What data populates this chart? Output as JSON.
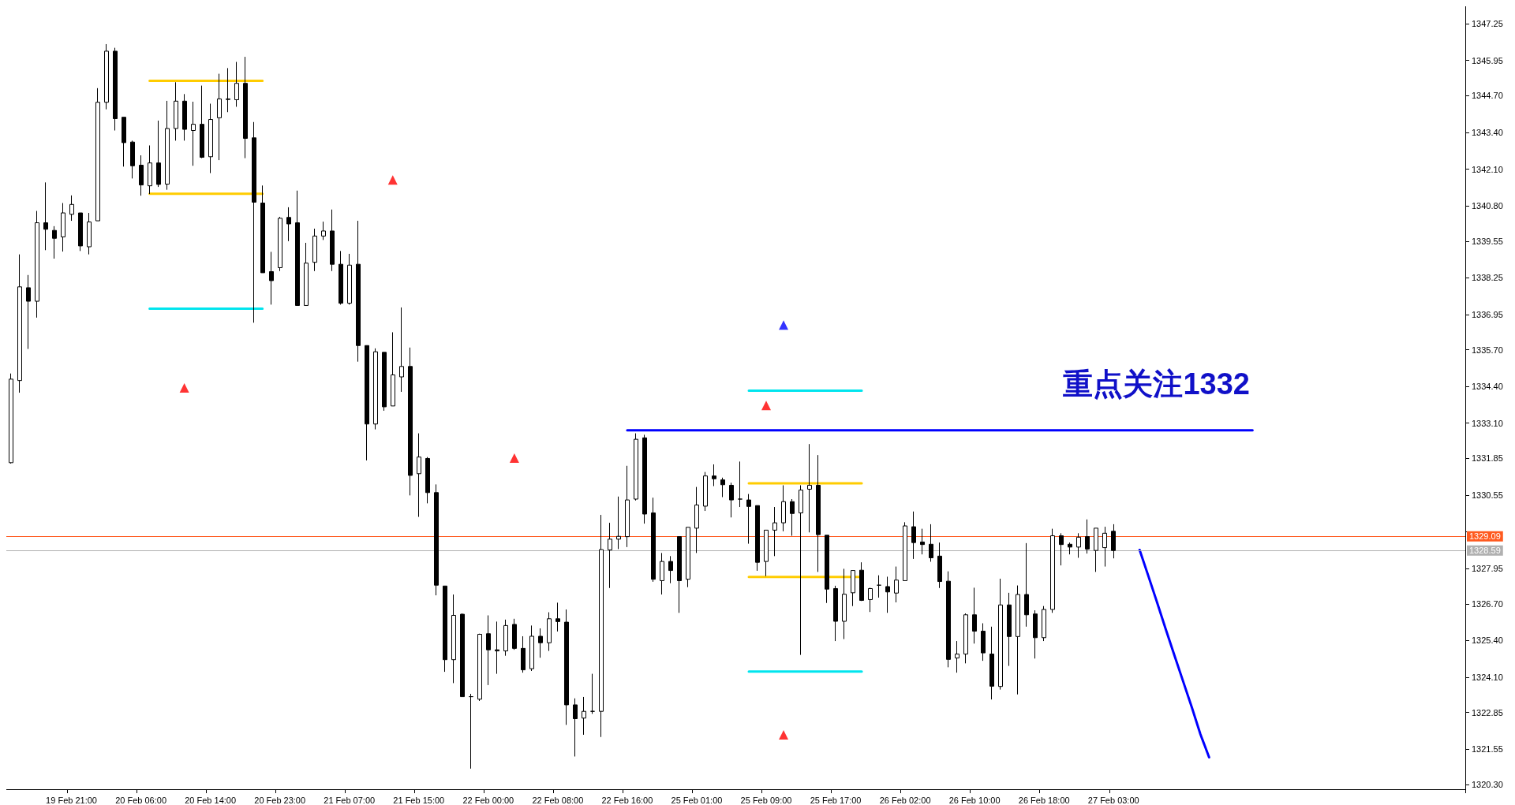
{
  "chart_data": {
    "type": "candlestick",
    "categories": [
      null,
      null,
      null,
      null,
      null,
      null,
      null,
      "19 Feb 21:00",
      null,
      null,
      null,
      null,
      null,
      null,
      null,
      "20 Feb 06:00",
      null,
      null,
      null,
      null,
      null,
      null,
      null,
      "20 Feb 14:00",
      null,
      null,
      null,
      null,
      null,
      null,
      null,
      "20 Feb 23:00",
      null,
      null,
      null,
      null,
      null,
      null,
      null,
      "21 Feb 07:00",
      null,
      null,
      null,
      null,
      null,
      null,
      null,
      "21 Feb 15:00",
      null,
      null,
      null,
      null,
      null,
      null,
      null,
      "22 Feb 00:00",
      null,
      null,
      null,
      null,
      null,
      null,
      null,
      "22 Feb 08:00",
      null,
      null,
      null,
      null,
      null,
      null,
      null,
      "22 Feb 16:00",
      null,
      null,
      null,
      null,
      null,
      null,
      null,
      "25 Feb 01:00",
      null,
      null,
      null,
      null,
      null,
      null,
      null,
      "25 Feb 09:00",
      null,
      null,
      null,
      null,
      null,
      null,
      null,
      "25 Feb 17:00",
      null,
      null,
      null,
      null,
      null,
      null,
      null,
      "26 Feb 02:00",
      null,
      null,
      null,
      null,
      null,
      null,
      null,
      "26 Feb 10:00",
      null,
      null,
      null,
      null,
      null,
      null,
      null,
      "26 Feb 18:00",
      null,
      null,
      null,
      null,
      null,
      null,
      null,
      "27 Feb 03:00",
      null,
      null,
      null,
      null,
      null,
      null,
      null,
      null,
      null,
      null,
      null,
      null,
      null,
      null,
      null,
      null,
      null,
      null,
      null,
      null,
      null,
      null,
      null,
      null,
      null,
      null,
      null,
      null,
      null,
      null,
      null,
      null,
      null,
      null,
      null,
      null,
      null,
      null,
      null,
      null
    ],
    "ohlc": [
      [
        1331.7,
        1334.86,
        1331.67,
        1334.66
      ],
      [
        1334.61,
        1339.08,
        1334.18,
        1337.93
      ],
      [
        1337.9,
        1338.35,
        1335.73,
        1337.42
      ],
      [
        1337.42,
        1340.62,
        1336.84,
        1340.2
      ],
      [
        1340.2,
        1341.63,
        1339.23,
        1339.97
      ],
      [
        1339.93,
        1340.08,
        1338.93,
        1339.65
      ],
      [
        1339.7,
        1340.9,
        1339.18,
        1340.55
      ],
      [
        1340.5,
        1341.17,
        1340.27,
        1340.85
      ],
      [
        1340.55,
        1340.55,
        1339.2,
        1339.38
      ],
      [
        1339.35,
        1340.55,
        1339.08,
        1340.23
      ],
      [
        1340.27,
        1344.97,
        1340.27,
        1344.47
      ],
      [
        1344.47,
        1346.53,
        1344.22,
        1346.28
      ],
      [
        1346.28,
        1346.4,
        1343.47,
        1343.89
      ],
      [
        1343.94,
        1343.94,
        1342.19,
        1343.04
      ],
      [
        1343.06,
        1343.11,
        1341.77,
        1342.22
      ],
      [
        1342.24,
        1342.59,
        1341.16,
        1341.54
      ],
      [
        1341.51,
        1342.94,
        1341.22,
        1342.32
      ],
      [
        1342.32,
        1343.82,
        1341.47,
        1341.56
      ],
      [
        1341.57,
        1344.52,
        1341.37,
        1343.54
      ],
      [
        1343.54,
        1345.18,
        1343.11,
        1344.51
      ],
      [
        1344.51,
        1344.76,
        1343.11,
        1343.51
      ],
      [
        1343.47,
        1344.49,
        1342.22,
        1343.69
      ],
      [
        1343.69,
        1345.06,
        1342.49,
        1342.52
      ],
      [
        1342.54,
        1344.42,
        1341.96,
        1343.86
      ],
      [
        1343.92,
        1345.48,
        1342.42,
        1344.59
      ],
      [
        1344.59,
        1345.68,
        1344.12,
        1344.57
      ],
      [
        1344.56,
        1345.9,
        1344.31,
        1345.14
      ],
      [
        1345.14,
        1346.08,
        1342.49,
        1343.19
      ],
      [
        1343.21,
        1343.77,
        1336.66,
        1340.93
      ],
      [
        1340.9,
        1341.52,
        1338.43,
        1338.43
      ],
      [
        1338.47,
        1339.17,
        1337.3,
        1338.15
      ],
      [
        1338.61,
        1340.41,
        1338.49,
        1340.36
      ],
      [
        1340.39,
        1340.75,
        1339.55,
        1340.16
      ],
      [
        1340.2,
        1341.34,
        1337.27,
        1337.27
      ],
      [
        1337.27,
        1339.49,
        1337.27,
        1338.77
      ],
      [
        1338.8,
        1339.99,
        1338.49,
        1339.73
      ],
      [
        1339.73,
        1340.24,
        1339.59,
        1339.91
      ],
      [
        1339.91,
        1340.67,
        1338.49,
        1338.73
      ],
      [
        1338.73,
        1339.2,
        1337.3,
        1337.35
      ],
      [
        1337.35,
        1339.1,
        1337.3,
        1338.7
      ],
      [
        1338.73,
        1340.27,
        1335.28,
        1335.85
      ],
      [
        1335.85,
        1335.85,
        1331.78,
        1333.07
      ],
      [
        1333.07,
        1335.75,
        1332.88,
        1335.63
      ],
      [
        1335.61,
        1335.61,
        1333.54,
        1333.68
      ],
      [
        1333.71,
        1336.32,
        1333.71,
        1334.81
      ],
      [
        1334.74,
        1337.2,
        1334.21,
        1335.11
      ],
      [
        1335.11,
        1335.78,
        1330.54,
        1331.25
      ],
      [
        1331.31,
        1332.74,
        1329.78,
        1331.9
      ],
      [
        1331.85,
        1331.9,
        1330.26,
        1330.64
      ],
      [
        1330.64,
        1330.93,
        1327.0,
        1327.36
      ],
      [
        1327.33,
        1327.33,
        1324.29,
        1324.72
      ],
      [
        1324.72,
        1327.03,
        1323.89,
        1326.29
      ],
      [
        1326.33,
        1326.36,
        1323.41,
        1323.41
      ],
      [
        1323.41,
        1323.51,
        1320.86,
        1323.41
      ],
      [
        1323.32,
        1325.64,
        1323.26,
        1325.62
      ],
      [
        1325.64,
        1326.29,
        1323.82,
        1325.07
      ],
      [
        1325.07,
        1326.07,
        1324.22,
        1325.03
      ],
      [
        1325.03,
        1326.14,
        1324.86,
        1325.93
      ],
      [
        1325.97,
        1326.17,
        1325.07,
        1325.12
      ],
      [
        1325.12,
        1325.55,
        1324.26,
        1324.36
      ],
      [
        1324.4,
        1325.93,
        1324.32,
        1325.55
      ],
      [
        1325.55,
        1325.83,
        1324.79,
        1325.32
      ],
      [
        1325.32,
        1326.4,
        1325.03,
        1326.17
      ],
      [
        1326.17,
        1326.74,
        1325.72,
        1326.07
      ],
      [
        1326.05,
        1326.5,
        1322.41,
        1323.12
      ],
      [
        1323.12,
        1323.35,
        1321.29,
        1322.63
      ],
      [
        1322.65,
        1323.4,
        1322.06,
        1322.89
      ],
      [
        1322.89,
        1324.22,
        1322.8,
        1322.89
      ],
      [
        1322.89,
        1329.85,
        1321.98,
        1328.62
      ],
      [
        1328.61,
        1329.57,
        1327.26,
        1328.99
      ],
      [
        1328.99,
        1330.5,
        1328.64,
        1329.09
      ],
      [
        1329.08,
        1331.59,
        1328.71,
        1330.38
      ],
      [
        1330.41,
        1332.74,
        1330.36,
        1332.53
      ],
      [
        1332.58,
        1332.69,
        1329.54,
        1329.88
      ],
      [
        1329.92,
        1330.46,
        1327.48,
        1327.57
      ],
      [
        1327.52,
        1328.5,
        1327.03,
        1328.2
      ],
      [
        1328.2,
        1328.39,
        1327.43,
        1327.88
      ],
      [
        1329.08,
        1329.08,
        1326.38,
        1327.52
      ],
      [
        1327.57,
        1329.41,
        1327.29,
        1329.41
      ],
      [
        1329.38,
        1330.84,
        1328.5,
        1330.2
      ],
      [
        1330.16,
        1331.37,
        1329.99,
        1331.23
      ],
      [
        1331.23,
        1331.64,
        1330.87,
        1331.13
      ],
      [
        1331.09,
        1331.17,
        1330.48,
        1330.92
      ],
      [
        1330.9,
        1330.99,
        1329.76,
        1330.38
      ],
      [
        1330.41,
        1331.74,
        1330.13,
        1330.41
      ],
      [
        1330.38,
        1330.59,
        1328.83,
        1330.15
      ],
      [
        1330.18,
        1330.18,
        1327.87,
        1328.17
      ],
      [
        1328.2,
        1329.31,
        1327.68,
        1329.31
      ],
      [
        1329.31,
        1330.13,
        1328.39,
        1329.57
      ],
      [
        1329.57,
        1330.9,
        1329.27,
        1330.32
      ],
      [
        1330.32,
        1330.41,
        1329.11,
        1329.9
      ],
      [
        1329.92,
        1330.9,
        1324.89,
        1330.73
      ],
      [
        1330.76,
        1332.36,
        1329.23,
        1330.9
      ],
      [
        1330.9,
        1331.97,
        1327.83,
        1329.15
      ],
      [
        1329.13,
        1329.13,
        1326.73,
        1327.22
      ],
      [
        1327.24,
        1327.34,
        1325.38,
        1326.08
      ],
      [
        1326.08,
        1327.94,
        1325.45,
        1327.04
      ],
      [
        1327.09,
        1327.88,
        1326.62,
        1327.88
      ],
      [
        1327.89,
        1328.17,
        1326.8,
        1326.82
      ],
      [
        1326.85,
        1327.27,
        1326.41,
        1327.24
      ],
      [
        1327.36,
        1327.71,
        1326.92,
        1327.36
      ],
      [
        1327.31,
        1327.66,
        1326.38,
        1327.12
      ],
      [
        1327.08,
        1328.02,
        1326.75,
        1327.54
      ],
      [
        1327.52,
        1329.59,
        1327.52,
        1329.46
      ],
      [
        1329.43,
        1329.97,
        1328.29,
        1328.87
      ],
      [
        1328.89,
        1329.36,
        1328.45,
        1328.8
      ],
      [
        1328.81,
        1329.52,
        1328.19,
        1328.33
      ],
      [
        1328.39,
        1328.87,
        1327.26,
        1327.49
      ],
      [
        1327.5,
        1327.85,
        1324.45,
        1324.73
      ],
      [
        1324.78,
        1325.38,
        1324.26,
        1324.92
      ],
      [
        1324.92,
        1326.36,
        1324.59,
        1326.31
      ],
      [
        1326.31,
        1327.27,
        1325.29,
        1325.73
      ],
      [
        1325.73,
        1326.01,
        1324.68,
        1324.96
      ],
      [
        1324.92,
        1325.89,
        1323.31,
        1323.78
      ],
      [
        1323.77,
        1327.59,
        1323.66,
        1326.66
      ],
      [
        1326.66,
        1327.09,
        1324.5,
        1325.54
      ],
      [
        1325.54,
        1327.35,
        1323.49,
        1327.03
      ],
      [
        1327.03,
        1328.85,
        1325.89,
        1326.31
      ],
      [
        1326.34,
        1326.47,
        1324.76,
        1325.5
      ],
      [
        1325.5,
        1326.62,
        1325.38,
        1326.5
      ],
      [
        1326.5,
        1329.36,
        1326.38,
        1329.11
      ],
      [
        1329.11,
        1329.2,
        1328.06,
        1328.8
      ],
      [
        1328.81,
        1328.87,
        1328.45,
        1328.71
      ],
      [
        1328.71,
        1329.2,
        1328.33,
        1329.06
      ],
      [
        1329.08,
        1329.69,
        1328.48,
        1328.64
      ],
      [
        1328.59,
        1329.38,
        1327.83,
        1329.38
      ],
      [
        1328.69,
        1329.43,
        1328.02,
        1329.2
      ],
      [
        1329.27,
        1329.52,
        1328.31,
        1328.59
      ],
      null,
      null,
      null,
      null,
      null,
      null,
      null,
      null,
      null,
      null,
      null,
      null,
      null,
      null,
      null,
      null,
      null,
      null,
      null,
      null,
      null,
      null,
      null,
      null,
      null,
      null,
      null,
      null,
      null,
      null,
      null,
      null,
      null,
      null,
      null,
      null,
      null,
      null,
      null,
      null
    ],
    "series": [
      {
        "type": "line",
        "color": "#ffcc00",
        "marker": "none",
        "values": [
          null,
          null,
          null,
          null,
          null,
          null,
          null,
          null,
          null,
          null,
          null,
          null,
          null,
          null,
          null,
          null,
          1345.23,
          1345.23,
          1345.23,
          1345.23,
          1345.23,
          1345.23,
          1345.23,
          1345.23,
          1345.23,
          1345.23,
          1345.23,
          1345.23,
          1345.23,
          1345.23,
          null,
          null,
          null,
          null,
          null,
          null,
          null,
          null,
          null,
          null,
          null,
          null,
          null,
          null,
          null,
          null,
          null,
          null,
          null,
          null,
          null,
          null,
          null,
          null,
          null,
          null,
          null,
          null,
          null,
          null,
          null,
          null,
          null,
          null,
          null,
          null,
          null,
          null,
          null,
          null,
          null,
          null,
          null,
          null,
          null,
          null,
          null,
          null,
          null,
          null,
          null,
          null,
          null,
          null,
          null,
          1330.97,
          1330.97,
          1330.97,
          1330.97,
          1330.97,
          1330.97,
          1330.97,
          1330.97,
          1330.97,
          1330.97,
          1330.97,
          1330.97,
          1330.97,
          1330.97,
          null,
          null,
          null,
          null,
          null,
          null,
          null,
          null,
          null,
          null,
          null,
          null,
          null,
          null,
          null,
          null,
          null,
          null,
          null,
          null,
          null,
          null,
          null,
          null,
          null,
          null,
          null,
          null,
          null,
          null,
          null,
          null,
          null,
          null,
          null,
          null,
          null,
          null,
          null,
          null,
          null,
          null,
          null,
          null,
          null,
          null,
          null,
          null,
          null,
          null,
          null,
          null,
          null,
          null,
          null,
          null,
          null,
          null,
          null,
          null,
          null,
          null,
          null,
          null,
          null,
          null,
          null,
          null,
          null
        ]
      },
      {
        "type": "line",
        "color": "#ffcc00",
        "marker": "none",
        "values": [
          null,
          null,
          null,
          null,
          null,
          null,
          null,
          null,
          null,
          null,
          null,
          null,
          null,
          null,
          null,
          null,
          1341.23,
          1341.23,
          1341.23,
          1341.23,
          1341.23,
          1341.23,
          1341.23,
          1341.23,
          1341.23,
          1341.23,
          1341.23,
          1341.23,
          1341.23,
          1341.23,
          null,
          null,
          null,
          null,
          null,
          null,
          null,
          null,
          null,
          null,
          null,
          null,
          null,
          null,
          null,
          null,
          null,
          null,
          null,
          null,
          null,
          null,
          null,
          null,
          null,
          null,
          null,
          null,
          null,
          null,
          null,
          null,
          null,
          null,
          null,
          null,
          null,
          null,
          null,
          null,
          null,
          null,
          null,
          null,
          null,
          null,
          null,
          null,
          null,
          null,
          null,
          null,
          null,
          null,
          null,
          1327.65,
          1327.65,
          1327.65,
          1327.65,
          1327.65,
          1327.65,
          1327.65,
          1327.65,
          1327.65,
          1327.65,
          1327.65,
          1327.65,
          1327.65,
          1327.65,
          null,
          null,
          null,
          null,
          null,
          null,
          null,
          null,
          null,
          null,
          null,
          null,
          null,
          null,
          null,
          null,
          null,
          null,
          null,
          null,
          null,
          null,
          null,
          null,
          null,
          null,
          null,
          null,
          null,
          null,
          null,
          null,
          null,
          null,
          null,
          null,
          null,
          null,
          null,
          null,
          null,
          null,
          null,
          null,
          null,
          null,
          null,
          null,
          null,
          null,
          null,
          null,
          null,
          null,
          null,
          null,
          null,
          null,
          null,
          null,
          null,
          null,
          null,
          null,
          null,
          null,
          null,
          null,
          null
        ]
      },
      {
        "type": "line",
        "color": "#00e5ee",
        "marker": "none",
        "values": [
          null,
          null,
          null,
          null,
          null,
          null,
          null,
          null,
          null,
          null,
          null,
          null,
          null,
          null,
          null,
          null,
          1337.16,
          1337.16,
          1337.16,
          1337.16,
          1337.16,
          1337.16,
          1337.16,
          1337.16,
          1337.16,
          1337.16,
          1337.16,
          1337.16,
          1337.16,
          1337.16,
          null,
          null,
          null,
          null,
          null,
          null,
          null,
          null,
          null,
          null,
          null,
          null,
          null,
          null,
          null,
          null,
          null,
          null,
          null,
          null,
          null,
          null,
          null,
          null,
          null,
          null,
          null,
          null,
          null,
          null,
          null,
          null,
          null,
          null,
          null,
          null,
          null,
          null,
          null,
          null,
          null,
          null,
          null,
          null,
          null,
          null,
          null,
          null,
          null,
          null,
          null,
          null,
          null,
          null,
          null,
          1334.25,
          1334.25,
          1334.25,
          1334.25,
          1334.25,
          1334.25,
          1334.25,
          1334.25,
          1334.25,
          1334.25,
          1334.25,
          1334.25,
          1334.25,
          1334.25,
          null,
          null,
          null,
          null,
          null,
          null,
          null,
          null,
          null,
          null,
          null,
          null,
          null,
          null,
          null,
          null,
          null,
          null,
          null,
          null,
          null,
          null,
          null,
          null,
          null,
          null,
          null,
          null,
          null,
          null,
          null,
          null,
          null,
          null,
          null,
          null,
          null,
          null,
          null,
          null,
          null,
          null,
          null,
          null,
          null,
          null,
          null,
          null,
          null,
          null,
          null,
          null,
          null,
          null,
          null,
          null,
          null,
          null,
          null,
          null,
          null,
          null,
          null,
          null,
          null,
          null,
          null,
          null,
          null
        ]
      },
      {
        "type": "line",
        "color": "#00e5ee",
        "marker": "none",
        "values": [
          null,
          null,
          null,
          null,
          null,
          null,
          null,
          null,
          null,
          null,
          null,
          null,
          null,
          null,
          null,
          null,
          null,
          null,
          null,
          null,
          null,
          null,
          null,
          null,
          null,
          null,
          null,
          null,
          null,
          null,
          null,
          null,
          null,
          null,
          null,
          null,
          null,
          null,
          null,
          null,
          null,
          null,
          null,
          null,
          null,
          null,
          null,
          null,
          null,
          null,
          null,
          null,
          null,
          null,
          null,
          null,
          null,
          null,
          null,
          null,
          null,
          null,
          null,
          null,
          null,
          null,
          null,
          null,
          null,
          null,
          null,
          null,
          null,
          null,
          null,
          null,
          null,
          null,
          null,
          null,
          null,
          null,
          null,
          null,
          null,
          1324.3,
          1324.3,
          1324.3,
          1324.3,
          1324.3,
          1324.3,
          1324.3,
          1324.3,
          1324.3,
          1324.3,
          1324.3,
          1324.3,
          1324.3,
          1324.3,
          null,
          null,
          null,
          null,
          null,
          null,
          null,
          null,
          null,
          null,
          null,
          null,
          null,
          null,
          null,
          null,
          null,
          null,
          null,
          null,
          null,
          null,
          null,
          null,
          null,
          null,
          null,
          null,
          null,
          null,
          null,
          null,
          null,
          null,
          null,
          null,
          null,
          null,
          null,
          null,
          null,
          null,
          null,
          null,
          null,
          null,
          null,
          null,
          null,
          null,
          null,
          null,
          null,
          null,
          null,
          null,
          null,
          null,
          null,
          null,
          null,
          null,
          null,
          null,
          null,
          null,
          null,
          null,
          null
        ]
      },
      {
        "type": "line",
        "color": "#0000ff",
        "marker": "none",
        "values": [
          null,
          null,
          null,
          null,
          null,
          null,
          null,
          null,
          null,
          null,
          null,
          null,
          null,
          null,
          null,
          null,
          null,
          null,
          null,
          null,
          null,
          null,
          null,
          null,
          null,
          null,
          null,
          null,
          null,
          null,
          null,
          null,
          null,
          null,
          null,
          null,
          null,
          null,
          null,
          null,
          null,
          null,
          null,
          null,
          null,
          null,
          null,
          null,
          null,
          null,
          null,
          null,
          null,
          null,
          null,
          null,
          null,
          null,
          null,
          null,
          null,
          null,
          null,
          null,
          null,
          null,
          null,
          null,
          null,
          null,
          null,
          1332.85,
          1332.85,
          1332.85,
          1332.85,
          1332.85,
          1332.85,
          1332.85,
          1332.85,
          1332.85,
          1332.85,
          1332.85,
          1332.85,
          1332.85,
          1332.85,
          1332.85,
          1332.85,
          1332.85,
          1332.85,
          1332.85,
          1332.85,
          1332.85,
          1332.85,
          1332.85,
          1332.85,
          1332.85,
          1332.85,
          1332.85,
          1332.85,
          1332.85,
          1332.85,
          1332.85,
          1332.85,
          1332.85,
          1332.85,
          1332.85,
          1332.85,
          1332.85,
          1332.85,
          1332.85,
          1332.85,
          1332.85,
          1332.85,
          1332.85,
          1332.85,
          1332.85,
          1332.85,
          1332.85,
          1332.85,
          1332.85,
          1332.85,
          1332.85,
          1332.85,
          1332.85,
          1332.85,
          1332.85,
          1332.85,
          1332.85,
          1332.85,
          1332.85,
          1332.85,
          1332.85,
          1332.85,
          1332.85,
          1332.85,
          1332.85,
          1332.85,
          1332.85,
          1332.85,
          1332.85,
          1332.85,
          1332.85,
          1332.85,
          1332.85,
          null,
          null,
          null,
          null,
          null,
          null,
          null,
          null,
          null,
          null,
          null,
          null,
          null,
          null,
          null,
          null,
          null,
          null,
          null,
          null,
          null,
          null,
          null,
          null
        ]
      },
      {
        "type": "line",
        "color": "#0000ff",
        "marker": "none",
        "values": [
          null,
          null,
          null,
          null,
          null,
          null,
          null,
          null,
          null,
          null,
          null,
          null,
          null,
          null,
          null,
          null,
          null,
          null,
          null,
          null,
          null,
          null,
          null,
          null,
          null,
          null,
          null,
          null,
          null,
          null,
          null,
          null,
          null,
          null,
          null,
          null,
          null,
          null,
          null,
          null,
          null,
          null,
          null,
          null,
          null,
          null,
          null,
          null,
          null,
          null,
          null,
          null,
          null,
          null,
          null,
          null,
          null,
          null,
          null,
          null,
          null,
          null,
          null,
          null,
          null,
          null,
          null,
          null,
          null,
          null,
          null,
          null,
          null,
          null,
          null,
          null,
          null,
          null,
          null,
          null,
          null,
          null,
          null,
          null,
          null,
          null,
          null,
          null,
          null,
          null,
          null,
          null,
          null,
          null,
          null,
          null,
          null,
          null,
          null,
          null,
          null,
          null,
          null,
          null,
          null,
          null,
          null,
          null,
          null,
          null,
          null,
          null,
          null,
          null,
          null,
          null,
          null,
          null,
          null,
          null,
          null,
          null,
          null,
          null,
          null,
          null,
          null,
          null,
          null,
          null,
          1328.61,
          1327.69,
          1326.76,
          1325.81,
          1324.88,
          1323.96,
          1323.04,
          1322.08,
          1321.26,
          null,
          null,
          null,
          null,
          null,
          null,
          null,
          null,
          null,
          null,
          null,
          null,
          null,
          null,
          null,
          null,
          null,
          null,
          null,
          null,
          null,
          null,
          null,
          null,
          null,
          null,
          null,
          null,
          null
        ]
      },
      {
        "type": "scatter",
        "color": "#ff0000",
        "marker": "triangle",
        "values": [
          null,
          null,
          null,
          null,
          null,
          null,
          null,
          null,
          null,
          null,
          null,
          null,
          null,
          null,
          null,
          null,
          null,
          null,
          null,
          null,
          1334.35,
          null,
          null,
          null,
          null,
          null,
          null,
          null,
          null,
          null,
          null,
          null,
          null,
          null,
          null,
          null,
          null,
          null,
          null,
          null,
          null,
          null,
          null,
          null,
          1341.72,
          null,
          null,
          null,
          null,
          null,
          null,
          null,
          null,
          null,
          null,
          null,
          null,
          null,
          1331.86,
          null,
          null,
          null,
          null,
          null,
          null,
          null,
          null,
          null,
          null,
          null,
          null,
          null,
          null,
          null,
          null,
          null,
          null,
          null,
          null,
          null,
          null,
          null,
          null,
          null,
          null,
          null,
          null,
          1333.73,
          null,
          1322.06,
          null,
          null,
          null,
          null,
          null,
          null,
          null,
          null,
          null,
          null,
          null,
          null,
          null,
          null,
          null,
          null,
          null,
          null,
          null,
          null,
          null,
          null,
          null,
          null,
          null,
          null,
          null,
          null,
          null,
          null,
          null,
          null,
          null,
          null,
          null,
          null,
          null,
          null,
          null,
          null,
          null,
          null,
          null,
          null,
          null,
          null,
          null,
          null,
          null,
          null,
          null,
          null,
          null,
          null,
          null,
          null,
          null,
          null,
          null,
          null,
          null,
          null,
          null,
          null,
          null,
          null,
          null,
          null,
          null,
          null,
          null,
          null,
          null,
          null,
          null,
          null,
          null,
          null
        ]
      },
      {
        "type": "scatter",
        "color": "#0000ff",
        "marker": "triangle",
        "values": [
          null,
          null,
          null,
          null,
          null,
          null,
          null,
          null,
          null,
          null,
          null,
          null,
          null,
          null,
          null,
          null,
          null,
          null,
          null,
          null,
          null,
          null,
          null,
          null,
          null,
          null,
          null,
          null,
          null,
          null,
          null,
          null,
          null,
          null,
          null,
          null,
          null,
          null,
          null,
          null,
          null,
          null,
          null,
          null,
          null,
          null,
          null,
          null,
          null,
          null,
          null,
          null,
          null,
          null,
          null,
          null,
          null,
          null,
          null,
          null,
          null,
          null,
          null,
          null,
          null,
          null,
          null,
          null,
          null,
          null,
          null,
          null,
          null,
          null,
          null,
          null,
          null,
          null,
          null,
          null,
          null,
          null,
          null,
          null,
          null,
          null,
          null,
          null,
          null,
          1336.58,
          null,
          null,
          null,
          null,
          null,
          null,
          null,
          null,
          null,
          null,
          null,
          null,
          null,
          null,
          null,
          null,
          null,
          null,
          null,
          null,
          null,
          null,
          null,
          null,
          null,
          null,
          null,
          null,
          null,
          null,
          null,
          null,
          null,
          null,
          null,
          null,
          null,
          null,
          null,
          null,
          null,
          null,
          null,
          null,
          null,
          null,
          null,
          null,
          null,
          null,
          null,
          null,
          null,
          null,
          null,
          null,
          null,
          null,
          null,
          null,
          null,
          null,
          null,
          null,
          null,
          null,
          null,
          null,
          null,
          null,
          null,
          null,
          null,
          null,
          null,
          null,
          null,
          null
        ]
      }
    ],
    "ref_lines": [
      {
        "axis": "y",
        "value": 1329.09,
        "label": "1329.09",
        "color": "#ff5a1f"
      },
      {
        "axis": "y",
        "value": 1328.59,
        "label": "1328.59",
        "color": "#b0b0b0"
      }
    ],
    "annotations": [
      "重点关注1332"
    ],
    "ylim": [
      1320.13,
      1347.87
    ],
    "yticks": [
      {
        "value": 1320.3,
        "label": "1320.30"
      },
      {
        "value": 1321.55,
        "label": "1321.55"
      },
      {
        "value": 1322.85,
        "label": "1322.85"
      },
      {
        "value": 1324.1,
        "label": "1324.10"
      },
      {
        "value": 1325.4,
        "label": "1325.40"
      },
      {
        "value": 1326.7,
        "label": "1326.70"
      },
      {
        "value": 1327.95,
        "label": "1327.95"
      },
      {
        "value": 1329.25,
        "label": null
      },
      {
        "value": 1330.55,
        "label": "1330.55"
      },
      {
        "value": 1331.85,
        "label": "1331.85"
      },
      {
        "value": 1333.1,
        "label": "1333.10"
      },
      {
        "value": 1334.4,
        "label": "1334.40"
      },
      {
        "value": 1335.7,
        "label": "1335.70"
      },
      {
        "value": 1336.95,
        "label": "1336.95"
      },
      {
        "value": 1338.25,
        "label": "1338.25"
      },
      {
        "value": 1339.55,
        "label": "1339.55"
      },
      {
        "value": 1340.8,
        "label": "1340.80"
      },
      {
        "value": 1342.1,
        "label": "1342.10"
      },
      {
        "value": 1343.4,
        "label": "1343.40"
      },
      {
        "value": 1344.7,
        "label": "1344.70"
      },
      {
        "value": 1345.95,
        "label": "1345.95"
      },
      {
        "value": 1347.25,
        "label": "1347.25"
      }
    ]
  }
}
